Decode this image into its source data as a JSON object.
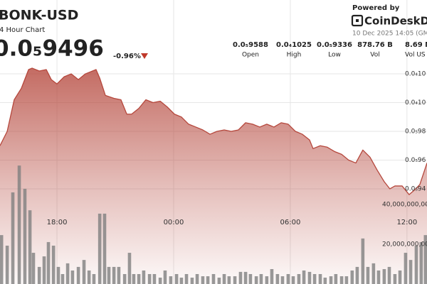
{
  "chart_data": {
    "type": "area",
    "title": "BONK-USD",
    "subtitle": "4 Hour Chart",
    "price": "0.0₅9496",
    "change": "-0.96%",
    "powered_by": "Powered by",
    "brand": "CoinDeskDat",
    "timestamp": "10 Dec 2025 14:05 (GM",
    "stats": [
      {
        "value": "0.0₅9588",
        "label": "Open"
      },
      {
        "value": "0.0₄1025",
        "label": "High"
      },
      {
        "value": "0.0₅9336",
        "label": "Low"
      },
      {
        "value": "878.76 B",
        "label": "Vol"
      },
      {
        "value": "8.69 M",
        "label": "Vol US"
      }
    ],
    "xlim": [
      -2.93,
      19.03
    ],
    "xticks": [
      {
        "value": 0,
        "label": "18:00"
      },
      {
        "value": 6,
        "label": "00:00"
      },
      {
        "value": 12,
        "label": "06:00"
      },
      {
        "value": 18,
        "label": "12:00"
      }
    ],
    "ylim": [
      8.738e-06,
      1.0714e-05
    ],
    "yticks": [
      {
        "value": 1.02e-05,
        "label": "0.0₄10"
      },
      {
        "value": 1e-05,
        "label": "0.0₄10"
      },
      {
        "value": 9.8e-06,
        "label": "0.0₅98"
      },
      {
        "value": 9.6e-06,
        "label": "0.0₅96"
      },
      {
        "value": 9.4e-06,
        "label": "0.0₅94"
      }
    ],
    "y2lim": [
      0,
      142900000000.0
    ],
    "y2ticks": [
      {
        "value": 40000000000.0,
        "label": "40,000,000,000"
      },
      {
        "value": 20000000000.0,
        "label": "20,000,000,000"
      }
    ],
    "grid": true,
    "series": [
      {
        "type": "area",
        "color": "#b5473c",
        "x": [
          -2.93,
          -2.56,
          -2.2,
          -1.83,
          -1.46,
          -1.28,
          -0.91,
          -0.55,
          -0.29,
          0,
          0.37,
          0.73,
          1.1,
          1.46,
          1.83,
          2.01,
          2.2,
          2.49,
          2.93,
          3.29,
          3.59,
          3.84,
          4.21,
          4.57,
          4.94,
          5.31,
          5.67,
          6.04,
          6.4,
          6.77,
          7.14,
          7.5,
          7.87,
          8.23,
          8.6,
          8.96,
          9.33,
          9.7,
          10.06,
          10.43,
          10.79,
          11.16,
          11.53,
          11.89,
          12.26,
          12.62,
          12.99,
          13.17,
          13.54,
          13.9,
          14.27,
          14.64,
          15.0,
          15.37,
          15.73,
          16.1,
          16.47,
          16.83,
          17.12,
          17.38,
          17.75,
          18.11,
          18.37,
          18.66,
          19.03
        ],
        "values": [
          9.7e-06,
          9.8e-06,
          1.002e-05,
          1.01e-05,
          1.023e-05,
          1.024e-05,
          1.022e-05,
          1.023e-05,
          1.016e-05,
          1.013e-05,
          1.018e-05,
          1.02e-05,
          1.016e-05,
          1.02e-05,
          1.022e-05,
          1.023e-05,
          1.017e-05,
          1.005e-05,
          1.003e-05,
          1.002e-05,
          9.92e-06,
          9.92e-06,
          9.96e-06,
          1.002e-05,
          1e-05,
          1.001e-05,
          9.97e-06,
          9.92e-06,
          9.9e-06,
          9.85e-06,
          9.83e-06,
          9.81e-06,
          9.78e-06,
          9.8e-06,
          9.81e-06,
          9.8e-06,
          9.81e-06,
          9.86e-06,
          9.85e-06,
          9.83e-06,
          9.85e-06,
          9.83e-06,
          9.86e-06,
          9.85e-06,
          9.8e-06,
          9.78e-06,
          9.74e-06,
          9.68e-06,
          9.7e-06,
          9.69e-06,
          9.66e-06,
          9.64e-06,
          9.6e-06,
          9.58e-06,
          9.67e-06,
          9.62e-06,
          9.53e-06,
          9.45e-06,
          9.4e-06,
          9.42e-06,
          9.42e-06,
          9.36e-06,
          9.39e-06,
          9.43e-06,
          9.58e-06
        ]
      },
      {
        "type": "bar",
        "axis": "y2",
        "color": "#808080",
        "x": [
          -2.85,
          -2.56,
          -2.27,
          -1.94,
          -1.65,
          -1.39,
          -1.21,
          -0.91,
          -0.66,
          -0.44,
          -0.18,
          0.07,
          0.29,
          0.55,
          0.8,
          1.1,
          1.39,
          1.65,
          1.9,
          2.2,
          2.45,
          2.67,
          2.93,
          3.18,
          3.48,
          3.73,
          3.95,
          4.21,
          4.46,
          4.76,
          5.01,
          5.31,
          5.56,
          5.85,
          6.15,
          6.4,
          6.66,
          6.95,
          7.21,
          7.5,
          7.76,
          8.05,
          8.34,
          8.6,
          8.85,
          9.15,
          9.44,
          9.7,
          9.95,
          10.25,
          10.5,
          10.79,
          11.05,
          11.34,
          11.6,
          11.89,
          12.15,
          12.44,
          12.7,
          12.99,
          13.25,
          13.54,
          13.79,
          14.09,
          14.34,
          14.64,
          14.89,
          15.18,
          15.44,
          15.73,
          15.99,
          16.28,
          16.54,
          16.83,
          17.09,
          17.38,
          17.64,
          17.93,
          18.19,
          18.48,
          18.73,
          18.95
        ],
        "values": [
          24600000000.0,
          19300000000.0,
          46100000000.0,
          59600000000.0,
          47900000000.0,
          37100000000.0,
          15700000000.0,
          8600000000.0,
          13900000000.0,
          21100000000.0,
          19300000000.0,
          8600000000.0,
          5000000000.0,
          10400000000.0,
          6800000000.0,
          8600000000.0,
          12100000000.0,
          6800000000.0,
          5000000000.0,
          35400000000.0,
          35400000000.0,
          8600000000.0,
          8600000000.0,
          8600000000.0,
          5000000000.0,
          15700000000.0,
          5000000000.0,
          5000000000.0,
          6800000000.0,
          5000000000.0,
          5000000000.0,
          3200000000.0,
          6800000000.0,
          3900000000.0,
          5000000000.0,
          3200000000.0,
          5000000000.0,
          3200000000.0,
          5000000000.0,
          3900000000.0,
          3900000000.0,
          5000000000.0,
          3200000000.0,
          5000000000.0,
          3900000000.0,
          3900000000.0,
          6100000000.0,
          6100000000.0,
          5000000000.0,
          3900000000.0,
          5000000000.0,
          3900000000.0,
          7500000000.0,
          5000000000.0,
          3900000000.0,
          5000000000.0,
          3900000000.0,
          5000000000.0,
          6800000000.0,
          6100000000.0,
          5000000000.0,
          5000000000.0,
          3200000000.0,
          3900000000.0,
          5000000000.0,
          3900000000.0,
          3900000000.0,
          6800000000.0,
          8600000000.0,
          22900000000.0,
          8600000000.0,
          10400000000.0,
          6800000000.0,
          7500000000.0,
          8600000000.0,
          5000000000.0,
          6800000000.0,
          15700000000.0,
          12100000000.0,
          19300000000.0,
          21100000000.0,
          24600000000.0
        ]
      }
    ]
  }
}
